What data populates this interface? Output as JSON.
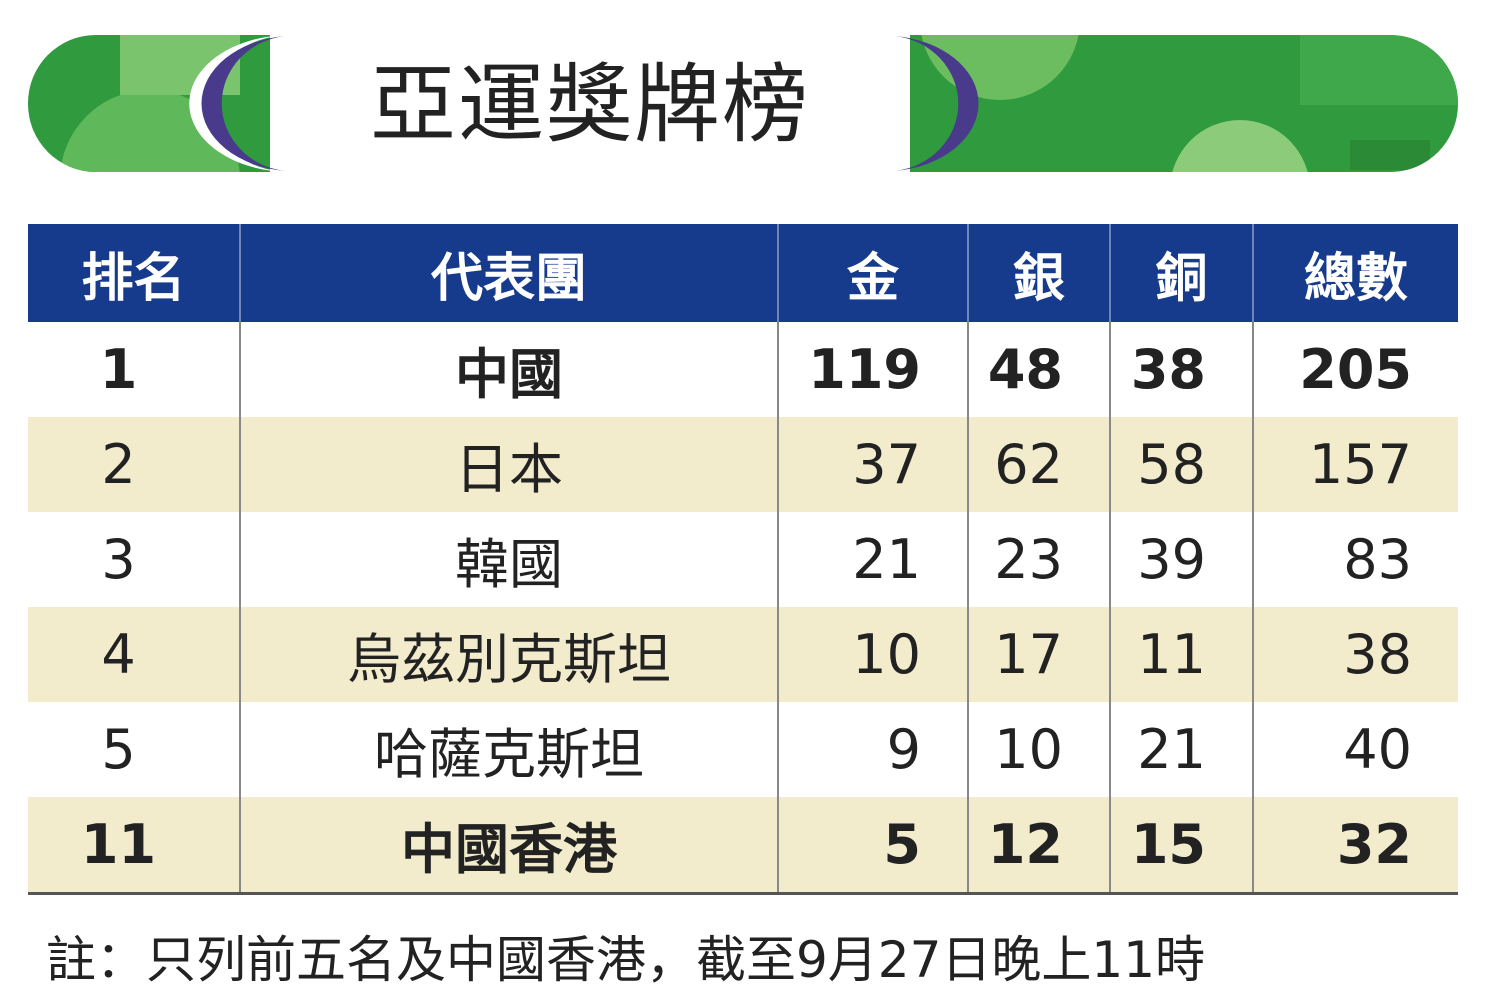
{
  "header": {
    "title": "亞運獎牌榜"
  },
  "table": {
    "columns": [
      "排名",
      "代表團",
      "金",
      "銀",
      "銅",
      "總數"
    ],
    "rows": [
      [
        1,
        "中國",
        119,
        48,
        38,
        205
      ],
      [
        2,
        "日本",
        37,
        62,
        58,
        157
      ],
      [
        3,
        "韓國",
        21,
        23,
        39,
        83
      ],
      [
        4,
        "烏茲別克斯坦",
        10,
        17,
        11,
        38
      ],
      [
        5,
        "哈薩克斯坦",
        9,
        10,
        21,
        40
      ],
      [
        11,
        "中國香港",
        5,
        12,
        15,
        32
      ]
    ]
  },
  "note": "註：只列前五名及中國香港，截至9月27日晚上11時"
}
